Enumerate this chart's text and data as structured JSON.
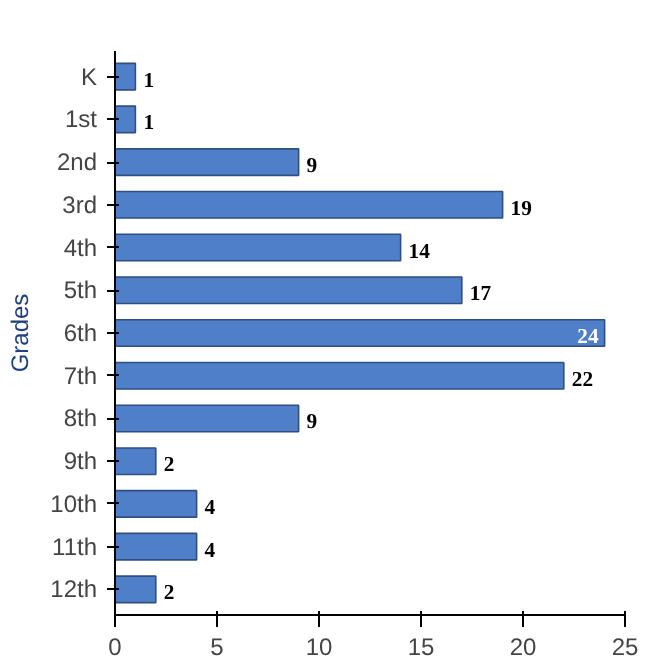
{
  "chart_data": {
    "type": "bar",
    "orientation": "horizontal",
    "ylabel": "Grades",
    "categories": [
      "K",
      "1st",
      "2nd",
      "3rd",
      "4th",
      "5th",
      "6th",
      "7th",
      "8th",
      "9th",
      "10th",
      "11th",
      "12th"
    ],
    "values": [
      1,
      1,
      9,
      19,
      14,
      17,
      24,
      22,
      9,
      2,
      4,
      4,
      2
    ],
    "color": "#4f7fc8",
    "xlim": [
      0,
      25
    ],
    "xticks": [
      0,
      5,
      10,
      15,
      20,
      25
    ],
    "grid": false,
    "data_labels": true
  }
}
